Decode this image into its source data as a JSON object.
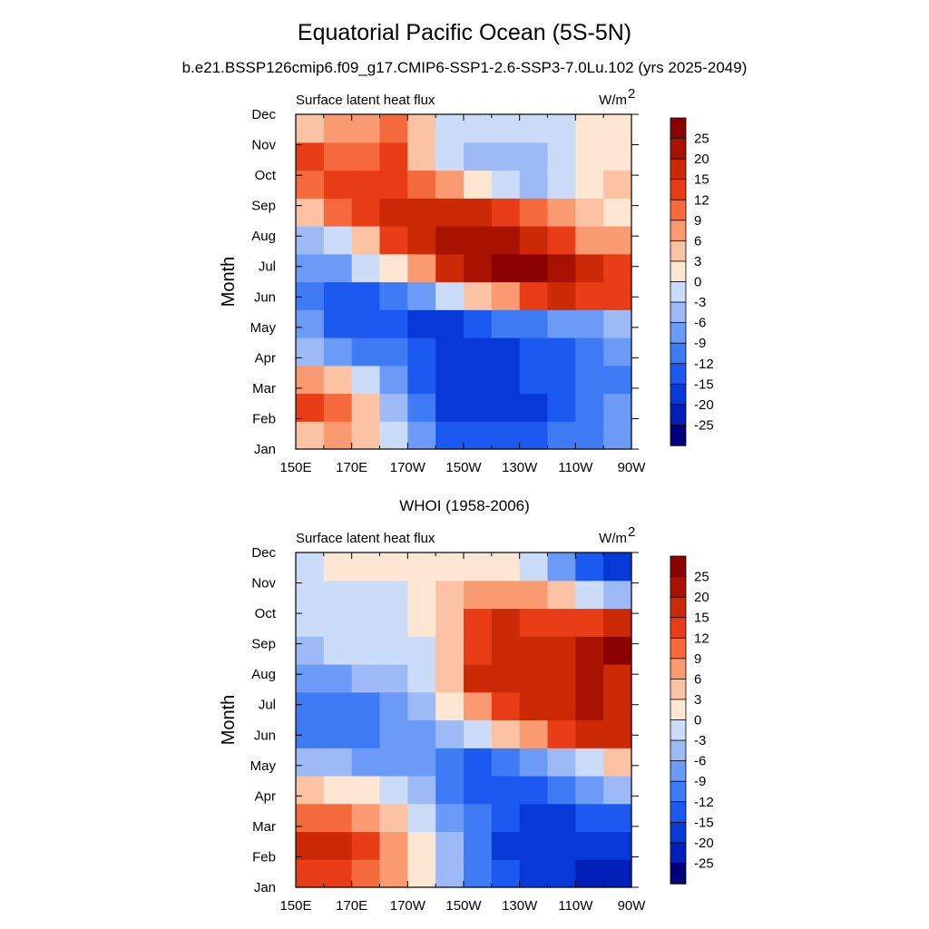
{
  "figure": {
    "title": "Equatorial Pacific Ocean (5S-5N)",
    "subtitle": "b.e21.BSSP126cmip6.f09_g17.CMIP6-SSP1-2.6-SSP3-7.0Lu.102 (yrs 2025-2049)",
    "second_panel_title": "WHOI (1958-2006)"
  },
  "chart_data": [
    {
      "type": "heatmap",
      "variable_label": "Surface latent heat flux",
      "units_label": "W/m",
      "units_exponent": "2",
      "ylabel": "Month",
      "x_ticks": [
        "150E",
        "170E",
        "170W",
        "150W",
        "130W",
        "110W",
        "90W"
      ],
      "y_ticks": [
        "Jan",
        "Feb",
        "Mar",
        "Apr",
        "May",
        "Jun",
        "Jul",
        "Aug",
        "Sep",
        "Oct",
        "Nov",
        "Dec"
      ],
      "colorbar_labels": [
        "25",
        "20",
        "15",
        "12",
        "9",
        "6",
        "3",
        "0",
        "-3",
        "-6",
        "-9",
        "-12",
        "-15",
        "-20",
        "-25"
      ],
      "values": [
        [
          3,
          7,
          4,
          -2,
          -9,
          -13,
          -14,
          -14,
          -13,
          -11,
          -10,
          -8
        ],
        [
          13,
          9,
          4,
          -4,
          -12,
          -16,
          -18,
          -19,
          -18,
          -15,
          -11,
          -9
        ],
        [
          7,
          3,
          -2,
          -8,
          -14,
          -17,
          -17,
          -16,
          -15,
          -13,
          -11,
          -10
        ],
        [
          -5,
          -8,
          -10,
          -12,
          -14,
          -16,
          -17,
          -17,
          -15,
          -13,
          -10,
          -9
        ],
        [
          -9,
          -13,
          -15,
          -15,
          -18,
          -18,
          -15,
          -12,
          -10,
          -8,
          -7,
          -6
        ],
        [
          -11,
          -14,
          -13,
          -10,
          -7,
          -2,
          4,
          8,
          13,
          15,
          14,
          12
        ],
        [
          -8,
          -7,
          -2,
          2,
          8,
          15,
          21,
          25,
          26,
          24,
          18,
          12
        ],
        [
          -6,
          -1,
          5,
          12,
          16,
          20,
          22,
          22,
          18,
          13,
          8,
          6
        ],
        [
          4,
          9,
          14,
          18,
          19,
          18,
          16,
          13,
          9,
          6,
          3,
          1
        ],
        [
          11,
          14,
          14,
          13,
          10,
          6,
          1,
          -3,
          -4,
          -1,
          2,
          3
        ],
        [
          12,
          11,
          11,
          12,
          5,
          -1,
          -4,
          -6,
          -5,
          -2,
          1,
          2
        ],
        [
          5,
          7,
          8,
          10,
          3,
          -2,
          -3,
          -3,
          -3,
          -1,
          2,
          2
        ]
      ]
    },
    {
      "type": "heatmap",
      "variable_label": "Surface latent heat flux",
      "units_label": "W/m",
      "units_exponent": "2",
      "ylabel": "Month",
      "x_ticks": [
        "150E",
        "170E",
        "170W",
        "150W",
        "130W",
        "110W",
        "90W"
      ],
      "y_ticks": [
        "Jan",
        "Feb",
        "Mar",
        "Apr",
        "May",
        "Jun",
        "Jul",
        "Aug",
        "Sep",
        "Oct",
        "Nov",
        "Dec"
      ],
      "colorbar_labels": [
        "25",
        "20",
        "15",
        "12",
        "9",
        "6",
        "3",
        "0",
        "-3",
        "-6",
        "-9",
        "-12",
        "-15",
        "-20",
        "-25"
      ],
      "values": [
        [
          12,
          13,
          10,
          6,
          1,
          -4,
          -10,
          -14,
          -17,
          -19,
          -21,
          -23
        ],
        [
          16,
          18,
          14,
          6,
          0,
          -6,
          -12,
          -16,
          -19,
          -20,
          -20,
          -20
        ],
        [
          10,
          10,
          8,
          5,
          -1,
          -7,
          -12,
          -15,
          -16,
          -16,
          -15,
          -13
        ],
        [
          3,
          2,
          1,
          -3,
          -6,
          -10,
          -13,
          -14,
          -13,
          -12,
          -9,
          -5
        ],
        [
          -4,
          -6,
          -7,
          -8,
          -9,
          -11,
          -13,
          -12,
          -9,
          -6,
          -2,
          4
        ],
        [
          -10,
          -11,
          -10,
          -9,
          -7,
          -5,
          -1,
          3,
          8,
          12,
          15,
          16
        ],
        [
          -10,
          -12,
          -10,
          -7,
          -4,
          0,
          8,
          14,
          16,
          19,
          20,
          19
        ],
        [
          -7,
          -8,
          -6,
          -4,
          -1,
          4,
          15,
          19,
          17,
          18,
          20,
          19
        ],
        [
          -4,
          -3,
          -2,
          -2,
          -1,
          4,
          14,
          17,
          19,
          18,
          21,
          25
        ],
        [
          -3,
          -3,
          -2,
          -1,
          0,
          3,
          12,
          15,
          13,
          13,
          14,
          17
        ],
        [
          -2,
          -1,
          -2,
          -1,
          0,
          4,
          7,
          8,
          6,
          3,
          -1,
          -6
        ],
        [
          -1,
          0,
          1,
          1,
          2,
          2,
          1,
          0,
          -3,
          -7,
          -13,
          -20
        ]
      ]
    }
  ]
}
